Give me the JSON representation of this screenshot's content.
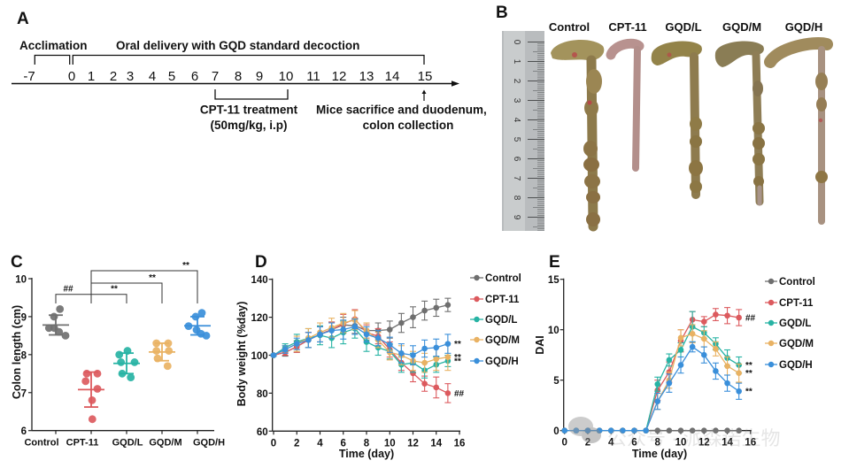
{
  "panel_a": {
    "label": "A",
    "acclimation_label": "Acclimation",
    "oral_delivery_label": "Oral delivery with GQD standard decoction",
    "days": [
      "-7",
      "0",
      "1",
      "2",
      "3",
      "4",
      "5",
      "6",
      "7",
      "8",
      "9",
      "10",
      "11",
      "12",
      "13",
      "14",
      "15"
    ],
    "treatment_label": "CPT-11 treatment",
    "treatment_dose": "(50mg/kg, i.p)",
    "endpoint_label_line1": "Mice sacrifice and duodenum,",
    "endpoint_label_line2": "colon collection"
  },
  "panel_b": {
    "label": "B",
    "groups": [
      "Control",
      "CPT-11",
      "GQD/L",
      "GQD/M",
      "GQD/H"
    ],
    "ruler_labels": [
      "0",
      "1",
      "2",
      "3",
      "4",
      "5",
      "6",
      "7",
      "8",
      "9",
      "1"
    ]
  },
  "chart_data": [
    {
      "panel": "C",
      "type": "scatter",
      "title": "",
      "xlabel": "",
      "ylabel": "Colon length (cm)",
      "categories": [
        "Control",
        "CPT-11",
        "GQD/L",
        "GQD/M",
        "GQD/H"
      ],
      "ylim": [
        6,
        10
      ],
      "yticks": [
        6,
        7,
        8,
        9,
        10
      ],
      "grid": false,
      "series": [
        {
          "name": "Control",
          "color": "#707070",
          "values": [
            9.2,
            9.0,
            8.7,
            8.7,
            8.6,
            8.5
          ],
          "mean": 8.78,
          "sd": 0.26
        },
        {
          "name": "CPT-11",
          "color": "#dc5a5e",
          "values": [
            7.5,
            7.5,
            7.3,
            7.1,
            6.8,
            6.3
          ],
          "mean": 7.08,
          "sd": 0.46
        },
        {
          "name": "GQD/L",
          "color": "#27b3a4",
          "values": [
            8.1,
            8.0,
            7.8,
            7.8,
            7.5,
            7.4
          ],
          "mean": 7.77,
          "sd": 0.27
        },
        {
          "name": "GQD/M",
          "color": "#e9b263",
          "values": [
            8.3,
            8.3,
            8.1,
            8.1,
            7.9,
            7.7
          ],
          "mean": 8.07,
          "sd": 0.23
        },
        {
          "name": "GQD/H",
          "color": "#3a8fda",
          "values": [
            9.1,
            9.0,
            8.75,
            8.65,
            8.55,
            8.5
          ],
          "mean": 8.76,
          "sd": 0.24
        }
      ],
      "annotations": [
        {
          "from": "Control",
          "to": "CPT-11",
          "label": "##"
        },
        {
          "from": "CPT-11",
          "to": "GQD/L",
          "label": "**"
        },
        {
          "from": "CPT-11",
          "to": "GQD/M",
          "label": "**"
        },
        {
          "from": "CPT-11",
          "to": "GQD/H",
          "label": "**"
        }
      ]
    },
    {
      "panel": "D",
      "type": "line",
      "title": "",
      "xlabel": "Time (day)",
      "ylabel": "Body weight (%day)",
      "x": [
        0,
        1,
        2,
        3,
        4,
        5,
        6,
        7,
        8,
        9,
        10,
        11,
        12,
        13,
        14,
        15
      ],
      "xlim": [
        0,
        16
      ],
      "xticks": [
        0,
        2,
        4,
        6,
        8,
        10,
        12,
        14,
        16
      ],
      "ylim": [
        60,
        140
      ],
      "yticks": [
        60,
        80,
        100,
        120,
        140
      ],
      "grid": false,
      "legend": "right",
      "series": [
        {
          "name": "Control",
          "color": "#6f6f6f",
          "values": [
            100,
            101.5,
            104.5,
            108,
            111,
            113.5,
            116,
            115.5,
            113,
            113,
            113.5,
            117,
            120,
            123.5,
            125,
            126.5
          ],
          "error": [
            0.5,
            2,
            3,
            4,
            4,
            4,
            4,
            4,
            4,
            4,
            4.5,
            5,
            5.5,
            5,
            4.5,
            3.5
          ],
          "annotation": ""
        },
        {
          "name": "CPT-11",
          "color": "#dc5a5e",
          "values": [
            100,
            101.5,
            104.5,
            108,
            111,
            113.5,
            116.5,
            119,
            112,
            110,
            103,
            96,
            90.5,
            85,
            83,
            80
          ],
          "error": [
            0.5,
            1.5,
            3,
            4,
            4,
            4,
            5,
            5,
            4,
            4,
            4,
            4,
            4.5,
            4,
            5.5,
            5
          ],
          "annotation": "##"
        },
        {
          "name": "GQD/L",
          "color": "#27b3a4",
          "values": [
            100,
            104,
            107,
            109,
            110.5,
            109,
            112,
            114,
            107,
            104,
            102,
            95,
            96,
            92,
            95,
            97
          ],
          "error": [
            0.5,
            2,
            4,
            5,
            5,
            5,
            6,
            5,
            5,
            4,
            4,
            4,
            5,
            4,
            4,
            3
          ],
          "annotation": "**"
        },
        {
          "name": "GQD/M",
          "color": "#e9b263",
          "values": [
            100,
            103,
            106,
            109,
            112,
            114.5,
            117,
            118.5,
            113,
            108,
            101.5,
            100,
            97,
            96,
            98,
            99
          ],
          "error": [
            0.5,
            2,
            4,
            5,
            5,
            5,
            5,
            5,
            4,
            4,
            4,
            5,
            5,
            5,
            6,
            7
          ],
          "annotation": "**"
        },
        {
          "name": "GQD/H",
          "color": "#3a8fda",
          "values": [
            100,
            103,
            106,
            108,
            111,
            113,
            113.5,
            115,
            111,
            109,
            105.5,
            101,
            100,
            103.5,
            104,
            106
          ],
          "error": [
            0.5,
            2,
            3,
            4,
            4,
            4,
            5,
            4,
            4,
            4,
            4,
            5,
            5,
            4.5,
            4.5,
            5
          ],
          "annotation": "**"
        }
      ]
    },
    {
      "panel": "E",
      "type": "line",
      "title": "",
      "xlabel": "Time (day)",
      "ylabel": "DAI",
      "x": [
        0,
        1,
        2,
        3,
        4,
        5,
        6,
        7,
        8,
        9,
        10,
        11,
        12,
        13,
        14,
        15
      ],
      "xlim": [
        0,
        16
      ],
      "xticks": [
        0,
        2,
        4,
        6,
        8,
        10,
        12,
        14,
        16
      ],
      "ylim": [
        0,
        15
      ],
      "yticks": [
        0,
        5,
        10,
        15
      ],
      "grid": false,
      "legend": "right",
      "series": [
        {
          "name": "Control",
          "color": "#6f6f6f",
          "values": [
            0,
            0,
            0,
            0,
            0,
            0,
            0,
            0,
            0,
            0,
            0,
            0,
            0,
            0,
            0,
            0
          ],
          "error": [
            0,
            0,
            0,
            0,
            0,
            0,
            0,
            0,
            0,
            0,
            0,
            0,
            0,
            0,
            0,
            0
          ],
          "annotation": ""
        },
        {
          "name": "CPT-11",
          "color": "#dc5a5e",
          "values": [
            0,
            0,
            0,
            0,
            0,
            0,
            0,
            0,
            4.0,
            5.8,
            8.9,
            11.0,
            10.8,
            11.5,
            11.4,
            11.2
          ],
          "error": [
            0,
            0,
            0,
            0,
            0,
            0,
            0,
            0,
            1.0,
            1.0,
            1.1,
            0.8,
            0.5,
            0.6,
            0.8,
            0.8
          ],
          "annotation": "##"
        },
        {
          "name": "GQD/L",
          "color": "#27b3a4",
          "values": [
            0,
            0,
            0,
            0,
            0,
            0,
            0,
            0,
            4.6,
            7.0,
            8.0,
            10.3,
            9.7,
            8.6,
            7.2,
            6.5
          ],
          "error": [
            0,
            0,
            0,
            0,
            0,
            0,
            0,
            0,
            0.7,
            0.6,
            0.7,
            1.5,
            0.6,
            0.6,
            0.8,
            0.8
          ],
          "annotation": "**"
        },
        {
          "name": "GQD/M",
          "color": "#e9b263",
          "values": [
            0,
            0,
            0,
            0,
            0,
            0,
            0,
            0,
            2.9,
            5.0,
            9.2,
            9.6,
            9.1,
            8.1,
            6.4,
            5.7
          ],
          "error": [
            0,
            0,
            0,
            0,
            0,
            0,
            0,
            0,
            0.8,
            0.8,
            0.8,
            0.9,
            0.8,
            0.7,
            0.9,
            0.9
          ],
          "annotation": "**"
        },
        {
          "name": "GQD/H",
          "color": "#3a8fda",
          "values": [
            0,
            0,
            0,
            0,
            0,
            0,
            0,
            0,
            2.9,
            4.7,
            6.5,
            8.3,
            7.5,
            5.9,
            4.7,
            3.9
          ],
          "error": [
            0,
            0,
            0,
            0,
            0,
            0,
            0,
            0,
            0.8,
            0.9,
            0.8,
            0.5,
            0.8,
            0.8,
            0.8,
            0.8
          ],
          "annotation": "**"
        }
      ]
    }
  ],
  "watermark": {
    "text": "公众号 · 派森诺生物",
    "icon": "wechat-logo-icon"
  }
}
